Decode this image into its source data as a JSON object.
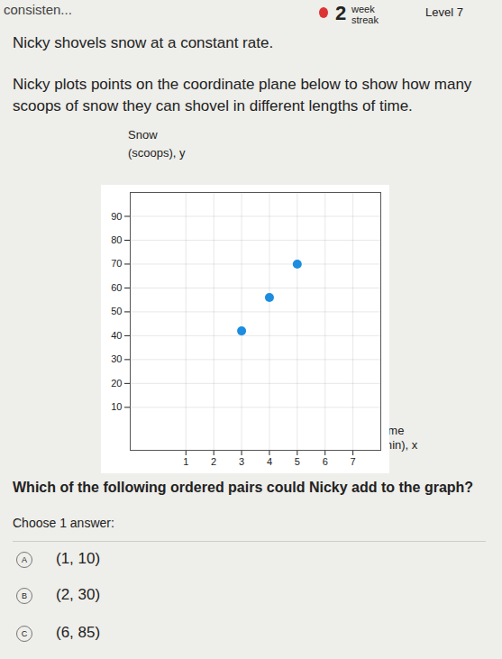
{
  "header": {
    "breadcrumb": "consisten...",
    "streak_number": "2",
    "streak_label": "week streak",
    "level": "Level 7"
  },
  "question": {
    "intro": "Nicky shovels snow at a constant rate.",
    "body": "Nicky plots points on the coordinate plane below to show how many scoops of snow they can shovel in different lengths of time.",
    "prompt": "Which of the following ordered pairs could Nicky add to the graph?",
    "instruction": "Choose 1 answer:"
  },
  "chart_data": {
    "type": "scatter",
    "x": [
      3,
      4,
      5
    ],
    "values": [
      42,
      56,
      70
    ],
    "color": "#1c8de0",
    "marker": "circle",
    "x_label": "Time (min), x",
    "y_label": "Snow (scoops), y",
    "xlim": [
      -1,
      8
    ],
    "ylim": [
      -8,
      100
    ],
    "xticks": [
      1,
      2,
      3,
      4,
      5,
      6,
      7
    ],
    "yticks": [
      10,
      20,
      30,
      40,
      50,
      60,
      70,
      80,
      90
    ],
    "grid": true
  },
  "answers": [
    {
      "letter": "A",
      "text": "(1, 10)"
    },
    {
      "letter": "B",
      "text": "(2, 30)"
    },
    {
      "letter": "C",
      "text": "(6, 85)"
    }
  ]
}
